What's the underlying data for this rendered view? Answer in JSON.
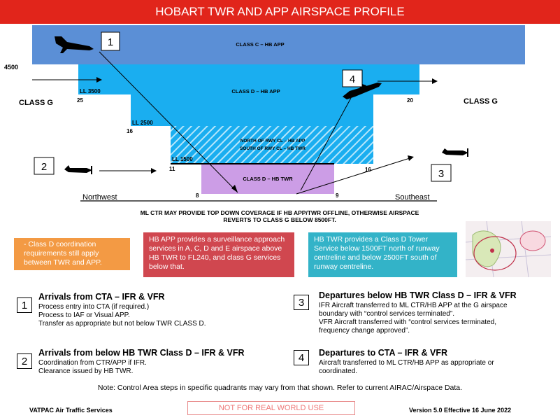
{
  "title": "HOBART TWR AND APP AIRSPACE PROFILE",
  "diagram": {
    "class_c_label": "CLASS C – HB APP",
    "class_d_app_label": "CLASS D – HB APP",
    "hatched_line1": "NORTH OF RWY CL – HB APP",
    "hatched_line2": "SOUTH OF RWY CL – HB TWR",
    "class_d_twr_label": "CLASS D – HB TWR",
    "alt_4500": "4500",
    "class_g_left": "CLASS G",
    "class_g_right": "CLASS G",
    "ll_3500": "LL 3500",
    "ll_2500": "LL 2500",
    "ll_1500": "LL 1500",
    "dist_25": "25",
    "dist_16_left": "16",
    "dist_11": "11",
    "dist_8": "8",
    "dist_9": "9",
    "dist_16_right": "16",
    "dist_20": "20",
    "northwest": "Northwest",
    "southeast": "Southeast",
    "marker_1": "1",
    "marker_2": "2",
    "marker_3": "3",
    "marker_4": "4"
  },
  "warning_line1": "ML CTR MAY PROVIDE TOP DOWN COVERAGE IF HB APP/TWR OFFLINE, OTHERWISE AIRSPACE",
  "warning_line2": "REVERTS TO CLASS G BELOW 8500FT.",
  "notes": {
    "orange": "-   Class D coordination requirements still apply between TWR and APP.",
    "red": "HB APP provides a surveillance approach services in A, C, D and E airspace above HB TWR to FL240, and class G services below that.",
    "teal": "HB TWR provides a Class D Tower Service below 1500FT north of runway centreline and below 2500FT south of runway centreline."
  },
  "steps": [
    {
      "num": "1",
      "title": "Arrivals from CTA – IFR & VFR",
      "lines": [
        "Process entry into CTA (if required.)",
        "Process to IAF or Visual APP.",
        "Transfer as appropriate but not below TWR CLASS D."
      ]
    },
    {
      "num": "2",
      "title": "Arrivals from below HB TWR Class D – IFR & VFR",
      "lines": [
        "Coordination from CTR/APP if IFR.",
        "Clearance issued by HB TWR."
      ]
    },
    {
      "num": "3",
      "title": "Departures below HB TWR Class D – IFR & VFR",
      "lines": [
        "IFR Aircraft transferred to ML CTR/HB APP at the G airspace",
        "boundary with “control services terminated”.",
        "VFR Aircraft transferred with “control services terminated,",
        "frequency change approved”."
      ]
    },
    {
      "num": "4",
      "title": "Departures to CTA – IFR & VFR",
      "lines": [
        "Aircraft transferred to ML CTR/HB APP as appropriate or",
        "coordinated."
      ]
    }
  ],
  "footer_note": "Note: Control Area steps in specific quadrants may vary from that shown. Refer to current AIRAC/Airspace Data.",
  "footer_left": "VATPAC Air Traffic Services",
  "footer_center": "NOT FOR REAL WORLD USE",
  "footer_right": "Version 5.0 Effective 16 June 2022",
  "colors": {
    "title_red": "#e1251b",
    "class_c": "#5b8fd6",
    "class_d_app": "#1aaef0",
    "class_d_twr": "#cc9de6",
    "note_orange": "#f39a44",
    "note_red": "#d0474f",
    "note_teal": "#33b3c8"
  }
}
